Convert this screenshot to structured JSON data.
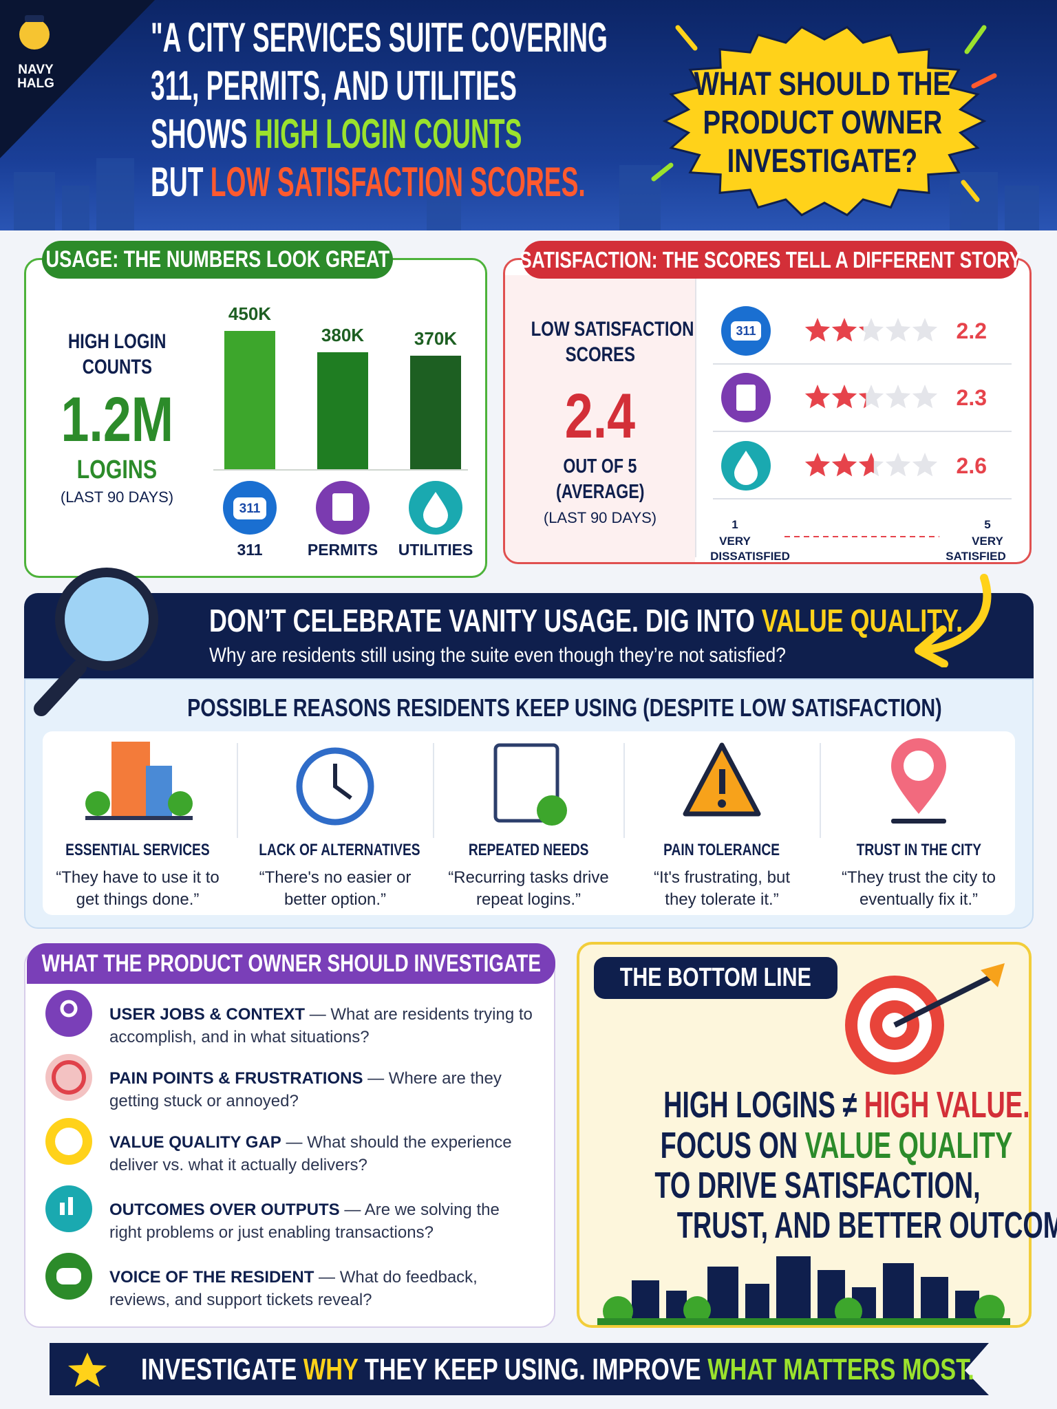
{
  "header": {
    "brand": [
      "NAVY",
      "HALG"
    ],
    "title_lines": [
      [
        "\"A CITY SERVICES SUITE COVERING"
      ],
      [
        "311, PERMITS, AND UTILITIES"
      ],
      [
        "SHOWS ",
        "HIGH LOGIN COUNTS"
      ],
      [
        "BUT ",
        "LOW SATISFACTION SCORES."
      ]
    ],
    "question": [
      "WHAT SHOULD THE",
      "PRODUCT OWNER",
      "INVESTIGATE?"
    ]
  },
  "usage": {
    "heading": "USAGE: THE NUMBERS LOOK GREAT",
    "summary_label": [
      "HIGH LOGIN",
      "COUNTS"
    ],
    "total": "1.2M",
    "total_unit": "LOGINS",
    "period": "(LAST 90 DAYS)",
    "badge": "311",
    "chart": {
      "type": "bar",
      "categories": [
        "311",
        "PERMITS",
        "UTILITIES"
      ],
      "values": [
        450000,
        380000,
        370000
      ],
      "value_labels": [
        "450K",
        "380K",
        "370K"
      ],
      "colors": [
        "#3da62c",
        "#1f7d22",
        "#1d5f22"
      ]
    }
  },
  "satisfaction": {
    "heading": "SATISFACTION: THE SCORES TELL A DIFFERENT STORY",
    "summary_label": [
      "LOW SATISFACTION",
      "SCORES"
    ],
    "average": 2.4,
    "average_note": [
      "OUT OF 5",
      "(AVERAGE)"
    ],
    "period": "(LAST 90 DAYS)",
    "badge": "311",
    "chart": {
      "type": "rating",
      "values": [
        2.2,
        2.3,
        2.6
      ],
      "color": "#e6434b",
      "scale": {
        "min": 1,
        "min_label": [
          "VERY",
          "DISSATISFIED"
        ],
        "max": 5,
        "max_label": [
          "VERY",
          "SATISFIED"
        ]
      }
    }
  },
  "banner": {
    "title": [
      "DON’T CELEBRATE VANITY USAGE. DIG INTO ",
      "VALUE QUALITY."
    ],
    "subtitle": "Why are residents still using the suite even though they’re not satisfied?"
  },
  "reasons": {
    "heading": "POSSIBLE REASONS RESIDENTS KEEP USING (DESPITE LOW SATISFACTION)",
    "items": [
      {
        "title": "ESSENTIAL SERVICES",
        "quote": "“They have to use it to get things done.”"
      },
      {
        "title": "LACK OF ALTERNATIVES",
        "quote": "“There's no easier or better option.”"
      },
      {
        "title": "REPEATED NEEDS",
        "quote": "“Recurring tasks drive repeat logins.”"
      },
      {
        "title": "PAIN TOLERANCE",
        "quote": "“It's frustrating, but they tolerate it.”"
      },
      {
        "title": "TRUST IN THE CITY",
        "quote": "“They trust the city to eventually fix it.”"
      }
    ]
  },
  "investigate": {
    "heading": "WHAT THE PRODUCT OWNER SHOULD INVESTIGATE",
    "items": [
      {
        "title": "USER JOBS & CONTEXT",
        "desc": " — What are residents trying to accomplish, and in what situations?"
      },
      {
        "title": "PAIN POINTS & FRUSTRATIONS",
        "desc": " — Where are they getting stuck or annoyed?"
      },
      {
        "title": "VALUE QUALITY GAP",
        "desc": " — What should the experience deliver vs. what it actually delivers?"
      },
      {
        "title": "OUTCOMES OVER OUTPUTS",
        "desc": " — Are we solving the right problems or just enabling transactions?"
      },
      {
        "title": "VOICE OF THE RESIDENT",
        "desc": " — What do feedback, reviews, and support tickets reveal?"
      }
    ]
  },
  "bottom_line": {
    "heading": "THE BOTTOM LINE",
    "lines": [
      [
        "HIGH LOGINS ≠ ",
        "HIGH VALUE."
      ],
      [
        "FOCUS ON ",
        "VALUE QUALITY"
      ],
      [
        "TO DRIVE SATISFACTION,"
      ],
      [
        "TRUST, AND BETTER OUTCOMES."
      ]
    ]
  },
  "footer": [
    "INVESTIGATE ",
    "WHY",
    " THEY KEEP USING. IMPROVE ",
    "WHAT MATTERS MOST."
  ]
}
